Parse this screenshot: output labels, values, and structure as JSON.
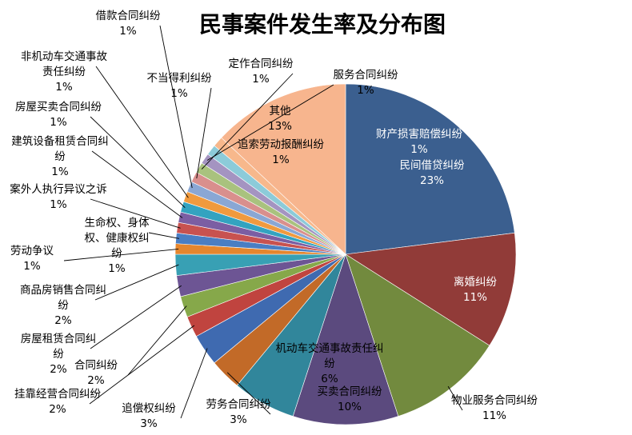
{
  "chart_data": {
    "type": "pie",
    "title": "民事案件发生率及分布图",
    "start_angle_deg": 0,
    "direction": "clockwise",
    "slices": [
      {
        "name": "民间借贷纠纷",
        "value": 23,
        "label": "23%",
        "color": "#3b5f8f"
      },
      {
        "name": "离婚纠纷",
        "value": 11,
        "label": "11%",
        "color": "#913b38"
      },
      {
        "name": "物业服务合同纠纷",
        "value": 11,
        "label": "11%",
        "color": "#728a3e"
      },
      {
        "name": "买卖合同纠纷",
        "value": 10,
        "label": "10%",
        "color": "#5b4a7e"
      },
      {
        "name": "机动车交通事故责任纠纷",
        "value": 6,
        "label": "6%",
        "color": "#31869b"
      },
      {
        "name": "劳务合同纠纷",
        "value": 3,
        "label": "3%",
        "color": "#c26a28"
      },
      {
        "name": "追偿权纠纷",
        "value": 3,
        "label": "3%",
        "color": "#3f6ab0"
      },
      {
        "name": "挂靠经营合同纠纷",
        "value": 2,
        "label": "2%",
        "color": "#c0443f"
      },
      {
        "name": "合同纠纷",
        "value": 2,
        "label": "2%",
        "color": "#86a84a"
      },
      {
        "name": "房屋租赁合同纠纷",
        "value": 2,
        "label": "2%",
        "color": "#6d5594"
      },
      {
        "name": "商品房销售合同纠纷",
        "value": 2,
        "label": "2%",
        "color": "#38a0b4"
      },
      {
        "name": "劳动争议",
        "value": 1,
        "label": "1%",
        "color": "#e5862e"
      },
      {
        "name": "生命权、身体权、健康权纠纷",
        "value": 1,
        "label": "1%",
        "color": "#4a7ec3"
      },
      {
        "name": "案外人执行异议之诉",
        "value": 1,
        "label": "1%",
        "color": "#c85250"
      },
      {
        "name": "建筑设备租赁合同纠纷",
        "value": 1,
        "label": "1%",
        "color": "#7b5ea3"
      },
      {
        "name": "房屋买卖合同纠纷",
        "value": 1,
        "label": "1%",
        "color": "#33a3c0"
      },
      {
        "name": "非机动车交通事故责任纠纷",
        "value": 1,
        "label": "1%",
        "color": "#f09a3e"
      },
      {
        "name": "借款合同纠纷",
        "value": 1,
        "label": "1%",
        "color": "#8aa7d4"
      },
      {
        "name": "不当得利纠纷",
        "value": 1,
        "label": "1%",
        "color": "#d98f8d"
      },
      {
        "name": "定作合同纠纷",
        "value": 1,
        "label": "1%",
        "color": "#a9c27e"
      },
      {
        "name": "服务合同纠纷",
        "value": 1,
        "label": "1%",
        "color": "#a494c1"
      },
      {
        "name": "追索劳动报酬纠纷",
        "value": 1,
        "label": "1%",
        "color": "#8ccbd9"
      },
      {
        "name": "财产损害赔偿纠纷",
        "value": 1,
        "label": "1%",
        "color": "#f7b88c"
      },
      {
        "name": "其他",
        "value": 13,
        "label": "13%",
        "color": "#f7b58e"
      }
    ]
  }
}
